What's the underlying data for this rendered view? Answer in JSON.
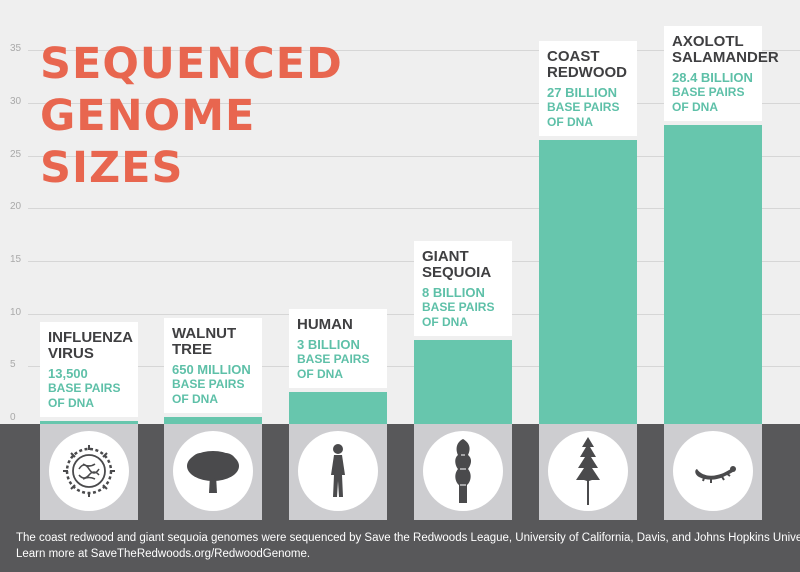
{
  "title": {
    "lines": [
      "SEQUENCED",
      "GENOME",
      "SIZES"
    ]
  },
  "chart_data": {
    "type": "bar",
    "categories": [
      "Influenza Virus",
      "Walnut Tree",
      "Human",
      "Giant Sequoia",
      "Coast Redwood",
      "Axolotl Salamander"
    ],
    "values": [
      1.35e-05,
      0.65,
      3,
      8,
      27,
      28.4
    ],
    "ylim": [
      0,
      38
    ],
    "yticks": [
      0,
      5,
      10,
      15,
      20,
      25,
      30,
      35
    ],
    "grid": true,
    "colors": {
      "bar": "#67c6ad",
      "title": "#e8664f",
      "value_text": "#5ec0a8",
      "background": "#efefef",
      "base": "#58585a"
    }
  },
  "labels": [
    {
      "name_lines": [
        "INFLUENZA",
        "VIRUS"
      ],
      "value": "13,500",
      "unit_lines": [
        "BASE PAIRS",
        "OF DNA"
      ],
      "icon": "virus-icon"
    },
    {
      "name_lines": [
        "WALNUT",
        "TREE"
      ],
      "value": "650 MILLION",
      "unit_lines": [
        "BASE PAIRS",
        "OF DNA"
      ],
      "icon": "walnut-tree-icon"
    },
    {
      "name_lines": [
        "HUMAN"
      ],
      "value": "3 BILLION",
      "unit_lines": [
        "BASE PAIRS",
        "OF DNA"
      ],
      "icon": "human-icon"
    },
    {
      "name_lines": [
        "GIANT",
        "SEQUOIA"
      ],
      "value": "8 BILLION",
      "unit_lines": [
        "BASE PAIRS",
        "OF DNA"
      ],
      "icon": "sequoia-icon"
    },
    {
      "name_lines": [
        "COAST",
        "REDWOOD"
      ],
      "value": "27 BILLION",
      "unit_lines": [
        "BASE PAIRS",
        "OF DNA"
      ],
      "icon": "redwood-icon"
    },
    {
      "name_lines": [
        "AXOLOTL",
        "SALAMANDER"
      ],
      "value": "28.4 BILLION",
      "unit_lines": [
        "BASE PAIRS",
        "OF DNA"
      ],
      "icon": "salamander-icon"
    }
  ],
  "footnote": [
    "The coast redwood and giant sequoia genomes were sequenced by Save the Redwoods League, University of California, Davis, and Johns Hopkins University.",
    "Learn more at SaveTheRedwoods.org/RedwoodGenome."
  ]
}
